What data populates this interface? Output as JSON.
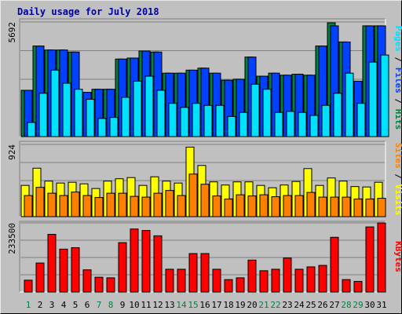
{
  "chart_data": {
    "title": "Daily usage for July 2018",
    "colors": {
      "pages": "#00e0ff",
      "files": "#0040ff",
      "hits": "#008040",
      "sites": "#ff8000",
      "visits": "#ffff00",
      "kbytes": "#ff0000",
      "weekday": "#000000",
      "weekend": "#008040",
      "title": "#0000a0"
    },
    "days": [
      "1",
      "2",
      "3",
      "4",
      "5",
      "6",
      "7",
      "8",
      "9",
      "10",
      "11",
      "12",
      "13",
      "14",
      "15",
      "16",
      "17",
      "18",
      "19",
      "20",
      "21",
      "22",
      "23",
      "24",
      "25",
      "26",
      "27",
      "28",
      "29",
      "30",
      "31"
    ],
    "weekend_days": [
      "1",
      "7",
      "8",
      "14",
      "15",
      "21",
      "22",
      "28",
      "29"
    ],
    "panels": [
      {
        "type": "bar",
        "ytick": "5692",
        "ymax": 5692,
        "legend": [
          {
            "label": "Pages",
            "color": "#00e0ff"
          },
          {
            "label": "Files",
            "color": "#0040ff"
          },
          {
            "label": "Hits",
            "color": "#008040"
          }
        ],
        "series": [
          {
            "name": "Hits",
            "color": "#008040",
            "values": [
              2300,
              4500,
              4300,
              4300,
              4200,
              2200,
              2350,
              2350,
              3850,
              3900,
              4250,
              4200,
              3150,
              3150,
              3300,
              3400,
              3150,
              2800,
              2850,
              3950,
              3000,
              3150,
              3050,
              3100,
              3050,
              4500,
              5650,
              4700,
              2750,
              5500,
              5500
            ]
          },
          {
            "name": "Files",
            "color": "#0040ff",
            "values": [
              2300,
              4500,
              4300,
              4300,
              4200,
              2200,
              2350,
              2350,
              3850,
              3900,
              4250,
              4200,
              3150,
              3150,
              3300,
              3400,
              3150,
              2800,
              2850,
              3950,
              3000,
              3150,
              3050,
              3100,
              3050,
              4500,
              5500,
              4700,
              2750,
              5500,
              5500
            ]
          },
          {
            "name": "Pages",
            "color": "#00e0ff",
            "values": [
              700,
              2150,
              3300,
              2650,
              2350,
              1850,
              900,
              950,
              1950,
              2750,
              3000,
              2300,
              1650,
              1450,
              1650,
              1550,
              1550,
              1000,
              1200,
              2600,
              2350,
              1200,
              1250,
              1200,
              1050,
              1550,
              2150,
              3150,
              1650,
              3700,
              4050
            ]
          }
        ]
      },
      {
        "type": "bar",
        "ytick": "924",
        "ymax": 924,
        "legend": [
          {
            "label": "Sites",
            "color": "#ff8000"
          },
          {
            "label": "Visits",
            "color": "#ffff00"
          }
        ],
        "series": [
          {
            "name": "Visits",
            "color": "#ffff00",
            "values": [
              400,
              620,
              455,
              430,
              440,
              420,
              360,
              455,
              485,
              500,
              400,
              510,
              455,
              430,
              890,
              655,
              445,
              405,
              445,
              445,
              400,
              370,
              405,
              450,
              615,
              400,
              495,
              455,
              385,
              380,
              440
            ]
          },
          {
            "name": "Sites",
            "color": "#ff8000",
            "values": [
              270,
              375,
              300,
              270,
              315,
              270,
              245,
              300,
              300,
              260,
              250,
              300,
              335,
              270,
              545,
              415,
              265,
              225,
              280,
              265,
              280,
              255,
              270,
              270,
              310,
              250,
              250,
              250,
              225,
              225,
              235
            ]
          }
        ]
      },
      {
        "type": "bar",
        "ytick": "233500",
        "ymax": 233500,
        "legend": [
          {
            "label": "KBytes",
            "color": "#ff0000"
          }
        ],
        "series": [
          {
            "name": "KBytes",
            "color": "#ff0000",
            "values": [
              40000,
              98000,
              195000,
              145000,
              150000,
              75000,
              50000,
              48000,
              167000,
              213000,
              208000,
              190000,
              77000,
              77000,
              130000,
              130000,
              77000,
              42000,
              48000,
              108000,
              72000,
              77000,
              115000,
              77000,
              85000,
              90000,
              185000,
              42000,
              36000,
              220000,
              233500
            ]
          }
        ]
      }
    ]
  }
}
